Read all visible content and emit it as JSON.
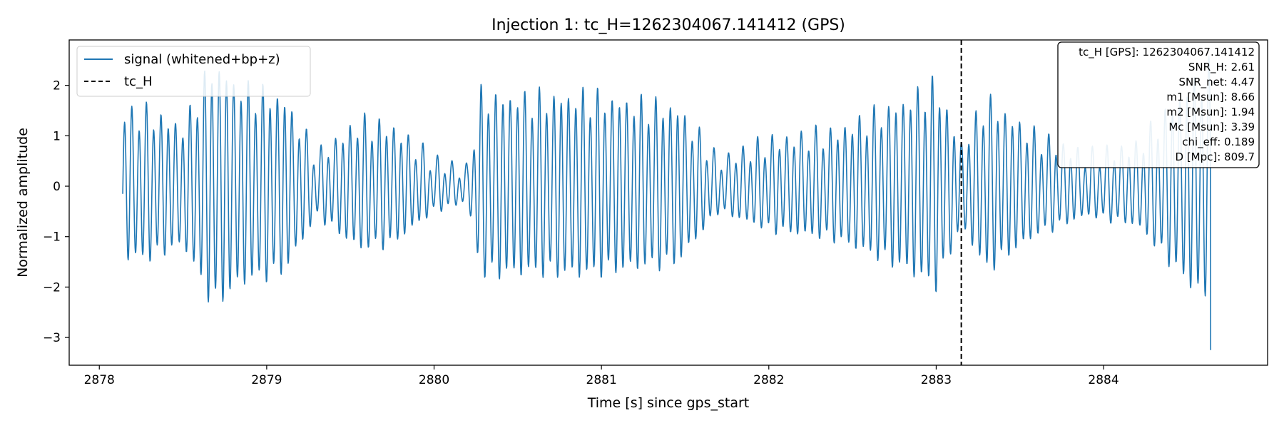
{
  "chart_data": {
    "type": "line",
    "title": "Injection 1: tc_H=1262304067.141412 (GPS)",
    "xlabel": "Time [s] since gps_start",
    "ylabel": "Normalized amplitude",
    "xlim": [
      2877.82,
      2884.98
    ],
    "ylim": [
      -3.55,
      2.9
    ],
    "xticks": [
      2878,
      2879,
      2880,
      2881,
      2882,
      2883,
      2884
    ],
    "yticks": [
      -3,
      -2,
      -1,
      0,
      1,
      2
    ],
    "xtick_labels": [
      "2878",
      "2879",
      "2880",
      "2881",
      "2882",
      "2883",
      "2884"
    ],
    "ytick_labels": [
      "−3",
      "−2",
      "−1",
      "0",
      "1",
      "2"
    ],
    "grid": false,
    "legend_position": "upper-left",
    "series": [
      {
        "name": "signal (whitened+bp+z)",
        "color": "#1f77b4",
        "style": "solid",
        "x_start": 2878.14,
        "x_end": 2884.64,
        "envelope_x": [
          2878.14,
          2878.3,
          2878.5,
          2878.68,
          2878.85,
          2879.1,
          2879.3,
          2879.55,
          2879.75,
          2880.0,
          2880.2,
          2880.28,
          2880.6,
          2880.9,
          2881.2,
          2881.45,
          2881.7,
          2882.0,
          2882.4,
          2882.8,
          2883.0,
          2883.15,
          2883.3,
          2883.6,
          2883.9,
          2884.2,
          2884.5,
          2884.62
        ],
        "envelope_y": [
          1.5,
          1.5,
          1.2,
          2.5,
          2.0,
          1.8,
          0.6,
          1.3,
          1.2,
          0.5,
          0.3,
          1.85,
          1.8,
          1.85,
          1.7,
          1.6,
          0.5,
          0.9,
          1.1,
          1.7,
          2.1,
          0.8,
          1.75,
          1.0,
          0.6,
          0.8,
          2.0,
          2.4
        ],
        "cycles_per_second": 23,
        "final_value": -3.25
      },
      {
        "name": "tc_H",
        "color": "#000000",
        "style": "dashed",
        "x": 2883.15
      }
    ],
    "info_box": [
      "tc_H [GPS]: 1262304067.141412",
      "SNR_H: 2.61",
      "SNR_net: 4.47",
      "m1 [Msun]: 8.66",
      "m2 [Msun]: 1.94",
      "Mc [Msun]: 3.39",
      "chi_eff: 0.189",
      "D [Mpc]: 809.7"
    ],
    "info_box_position": "upper-right"
  }
}
